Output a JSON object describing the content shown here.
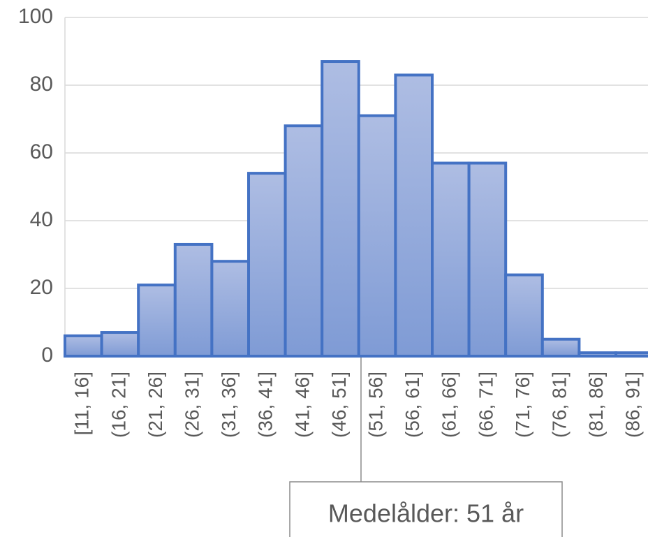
{
  "chart_data": {
    "type": "bar",
    "categories": [
      "[11, 16]",
      "(16, 21]",
      "(21, 26]",
      "(26, 31]",
      "(31, 36]",
      "(36, 41]",
      "(41, 46]",
      "(46, 51]",
      "(51, 56]",
      "(56, 61]",
      "(61, 66]",
      "(66, 71]",
      "(71, 76]",
      "(76, 81]",
      "(81, 86]",
      "(86, 91]"
    ],
    "values": [
      6,
      7,
      21,
      33,
      28,
      54,
      68,
      87,
      71,
      83,
      57,
      57,
      24,
      5,
      1,
      1
    ],
    "color": "#4472c4",
    "ylim": [
      0,
      100
    ],
    "yticks": [
      0,
      20,
      40,
      60,
      80,
      100
    ],
    "grid": true,
    "annotation": "Medelålder: 51 år"
  }
}
